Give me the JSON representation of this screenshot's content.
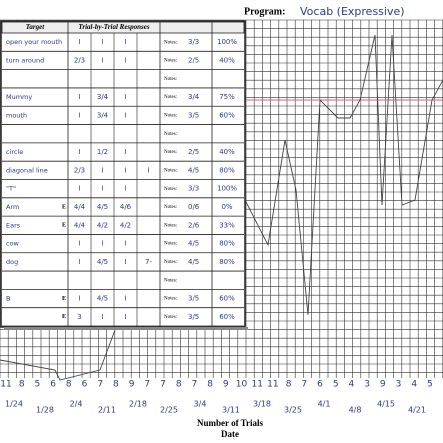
{
  "header": {
    "program_label": "Program:",
    "program_value": "Vocab (Expressive)"
  },
  "table": {
    "headers": [
      "Target",
      "Trial-by-Trial Responses"
    ],
    "rows": [
      {
        "target": "open your mouth",
        "responses": [
          "I",
          "I",
          "I"
        ],
        "notes_label": "Notes:",
        "note": "3/3",
        "percent": "100%"
      },
      {
        "target": "turn around",
        "responses": [
          "2/3",
          "I",
          "I"
        ],
        "notes_label": "Notes:",
        "note": "2/5",
        "percent": "40%"
      },
      {
        "notes_label": "Notes:"
      },
      {
        "target": "Mummy",
        "responses": [
          "I",
          "3/4",
          "I"
        ],
        "notes_label": "Notes:",
        "note": "3/4",
        "percent": "75%"
      },
      {
        "target": "mouth",
        "responses": [
          "I",
          "3/4",
          "I"
        ],
        "notes_label": "Notes:",
        "note": "3/5",
        "percent": "60%"
      },
      {
        "notes_label": "Notes:"
      },
      {
        "target": "circle",
        "responses": [
          "I",
          "1/2",
          "I"
        ],
        "notes_label": "Notes:",
        "note": "2/5",
        "percent": "40%"
      },
      {
        "target": "diagonal line",
        "responses": [
          "2/3",
          "I",
          "I",
          "I"
        ],
        "notes_label": "Notes:",
        "note": "4/5",
        "percent": "80%"
      },
      {
        "target": "\"T\"",
        "responses": [
          "I",
          "I",
          "I"
        ],
        "notes_label": "Notes:",
        "note": "3/3",
        "percent": "100%"
      },
      {
        "target": "Arm",
        "mark": "E",
        "responses": [
          "4/4",
          "4/5",
          "4/6"
        ],
        "notes_label": "Notes:",
        "note": "0/6",
        "percent": "0%"
      },
      {
        "target": "Ears",
        "mark": "E",
        "responses": [
          "4/4",
          "4/2",
          "4/2"
        ],
        "notes_label": "Notes:",
        "note": "2/6",
        "percent": "33%"
      },
      {
        "target": "cow",
        "responses": [
          "I",
          "I",
          "I"
        ],
        "notes_label": "Notes:",
        "note": "4/5",
        "percent": "80%"
      },
      {
        "target": "dog",
        "responses": [
          "I",
          "4/5",
          "I",
          "7-"
        ],
        "notes_label": "Notes:",
        "note": "4/5",
        "percent": "80%"
      },
      {
        "notes_label": "Notes:"
      },
      {
        "target": "B",
        "mark": "E",
        "responses": [
          "I",
          "4/5",
          "I"
        ],
        "notes_label": "Notes:",
        "note": "3/5",
        "percent": "60%"
      },
      {
        "mark": "E",
        "responses": [
          "3",
          "I",
          "I"
        ],
        "notes_label": "Notes:",
        "note": "3/5",
        "percent": "60%"
      }
    ]
  },
  "footer": {
    "trial_numbers": [
      "11",
      "8",
      "5",
      "6",
      "8",
      "6",
      "7",
      "8",
      "9",
      "7",
      "7",
      "8",
      "7",
      "8",
      "9",
      "10",
      "11",
      "11",
      "8",
      "7",
      "6",
      "5",
      "4",
      "3",
      "9",
      "3",
      "4",
      "5"
    ],
    "dates": [
      "1/24",
      "1/28",
      "2/4",
      "2/11",
      "2/18",
      "2/25",
      "3/4",
      "3/11",
      "3/18",
      "3/25",
      "4/1",
      "4/8",
      "4/15",
      "4/21"
    ],
    "x_label": "Number of Trials",
    "date_label": "Date"
  }
}
